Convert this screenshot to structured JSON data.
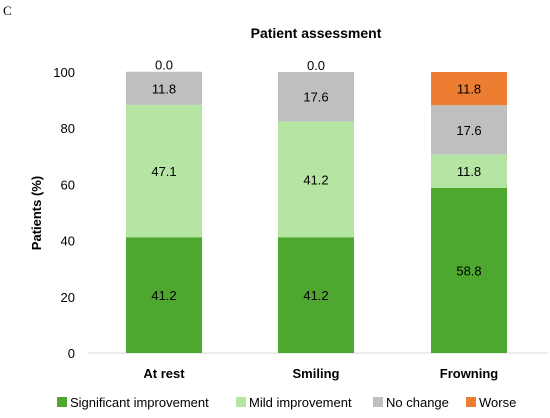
{
  "panel_label": "C",
  "chart_data": {
    "type": "bar",
    "stacked": true,
    "title": "Patient assessment",
    "xlabel": "",
    "ylabel": "Patients (%)",
    "ylim": [
      0,
      100
    ],
    "yticks": [
      0,
      20,
      40,
      60,
      80,
      100
    ],
    "categories": [
      "At rest",
      "Smiling",
      "Frowning"
    ],
    "series": [
      {
        "name": "Significant improvement",
        "color": "#4ea72e",
        "values": [
          41.2,
          41.2,
          58.8
        ],
        "labels": [
          "41.2",
          "41.2",
          "58.8"
        ]
      },
      {
        "name": "Mild improvement",
        "color": "#b5e5a2",
        "values": [
          47.1,
          41.2,
          11.8
        ],
        "labels": [
          "47.1",
          "41.2",
          "11.8"
        ]
      },
      {
        "name": "No change",
        "color": "#bfbfbf",
        "values": [
          11.8,
          17.6,
          17.6
        ],
        "labels": [
          "11.8",
          "17.6",
          "17.6"
        ]
      },
      {
        "name": "Worse",
        "color": "#ed7d31",
        "values": [
          0.0,
          0.0,
          11.8
        ],
        "labels": [
          "0.0",
          "0.0",
          "11.8"
        ]
      }
    ],
    "grid": false,
    "legend_position": "bottom"
  }
}
